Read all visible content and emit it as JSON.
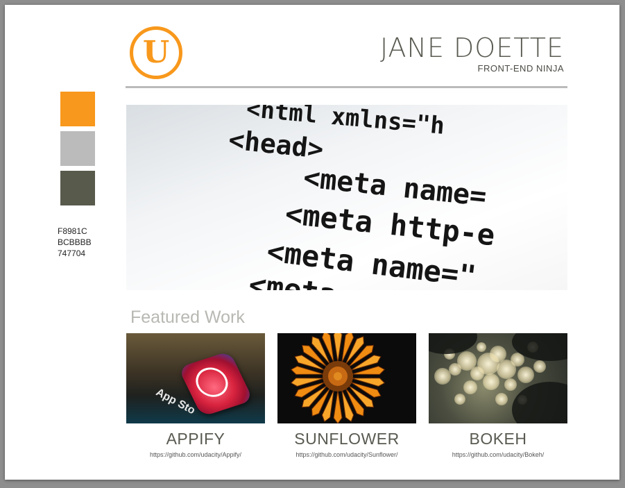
{
  "header": {
    "logo_letter": "U",
    "name": "JANE DOETTE",
    "role": "FRONT-END NINJA"
  },
  "palette": {
    "colors": [
      "#F8981C",
      "#BCBBBB",
      "#747704"
    ],
    "codes": [
      "F8981C",
      "BCBBBB",
      "747704"
    ]
  },
  "hero": {
    "code_lines": [
      "<html xmlns=\"h",
      "<head>",
      "<meta name=",
      "<meta http-e",
      "<meta name=\"",
      "<meta n"
    ]
  },
  "featured": {
    "title": "Featured Work",
    "items": [
      {
        "title": "APPIFY",
        "link": "https://github.com/udacity/Appify/",
        "thumb_text": "App Sto"
      },
      {
        "title": "SUNFLOWER",
        "link": "https://github.com/udacity/Sunflower/"
      },
      {
        "title": "BOKEH",
        "link": "https://github.com/udacity/Bokeh/"
      }
    ]
  }
}
